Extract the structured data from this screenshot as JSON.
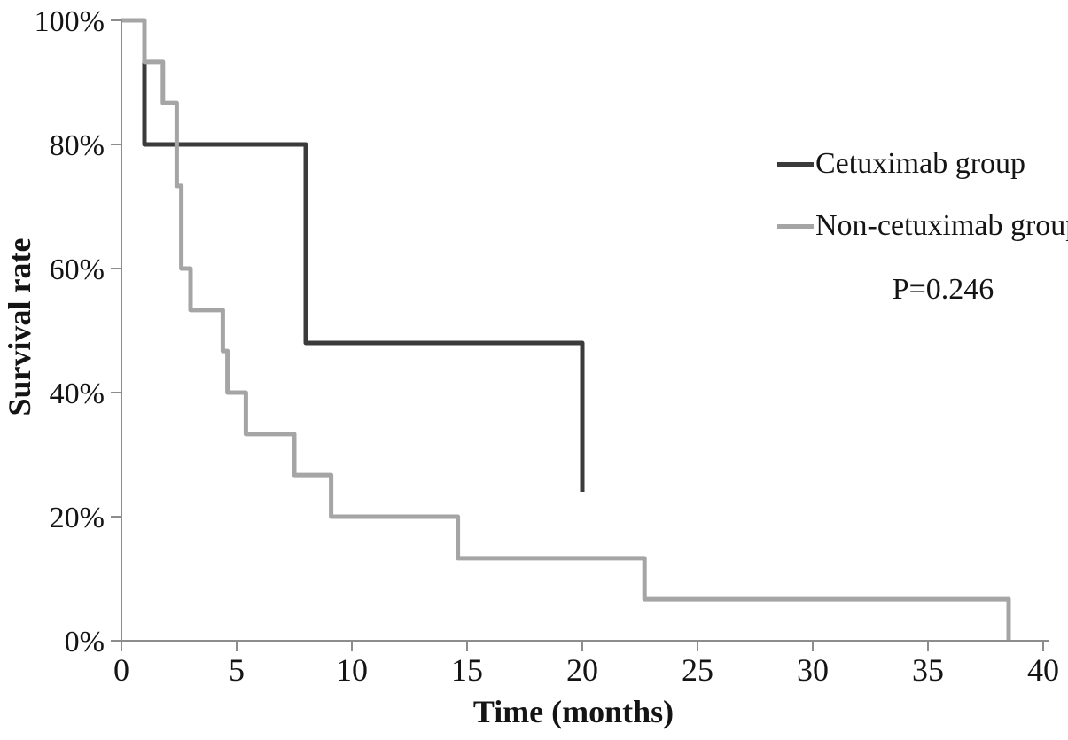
{
  "figure": {
    "background": "#ffffff"
  },
  "chart_data": {
    "type": "line",
    "variant": "kaplan-meier-step",
    "title": "",
    "xlabel": "Time (months)",
    "ylabel": "Survival rate",
    "xlim": [
      0,
      40
    ],
    "ylim": [
      0,
      100
    ],
    "grid": false,
    "legend_position": "upper-right",
    "x_ticks": {
      "values": [
        0,
        5,
        10,
        15,
        20,
        25,
        30,
        35,
        40
      ],
      "labels": [
        "0",
        "5",
        "10",
        "15",
        "20",
        "25",
        "30",
        "35",
        "40"
      ]
    },
    "y_ticks": {
      "values": [
        0,
        20,
        40,
        60,
        80,
        100
      ],
      "labels": [
        "0%",
        "20%",
        "40%",
        "60%",
        "80%",
        "100%"
      ]
    },
    "axis_color": "#8d8d8d",
    "text_color": "#141414",
    "annotations": [
      {
        "text": "P=0.246"
      }
    ],
    "series": [
      {
        "name": "Cetuximab group",
        "color": "#3b3b3b",
        "points": [
          [
            1,
            100
          ],
          [
            1,
            80
          ],
          [
            8,
            80
          ],
          [
            8,
            48
          ],
          [
            20,
            48
          ],
          [
            20,
            24
          ]
        ]
      },
      {
        "name": "Non-cetuximab group",
        "color": "#a5a5a5",
        "points": [
          [
            0,
            100
          ],
          [
            1,
            100
          ],
          [
            1,
            93.3
          ],
          [
            1.8,
            93.3
          ],
          [
            1.8,
            86.7
          ],
          [
            2.4,
            86.7
          ],
          [
            2.4,
            73.3
          ],
          [
            2.6,
            73.3
          ],
          [
            2.6,
            60
          ],
          [
            3,
            60
          ],
          [
            3,
            53.3
          ],
          [
            4.4,
            53.3
          ],
          [
            4.4,
            46.7
          ],
          [
            4.6,
            46.7
          ],
          [
            4.6,
            40
          ],
          [
            5.4,
            40
          ],
          [
            5.4,
            33.3
          ],
          [
            7.5,
            33.3
          ],
          [
            7.5,
            26.7
          ],
          [
            9.1,
            26.7
          ],
          [
            9.1,
            20
          ],
          [
            14.6,
            20
          ],
          [
            14.6,
            13.3
          ],
          [
            22.7,
            13.3
          ],
          [
            22.7,
            6.7
          ],
          [
            38.5,
            6.7
          ],
          [
            38.5,
            0
          ]
        ]
      }
    ]
  }
}
